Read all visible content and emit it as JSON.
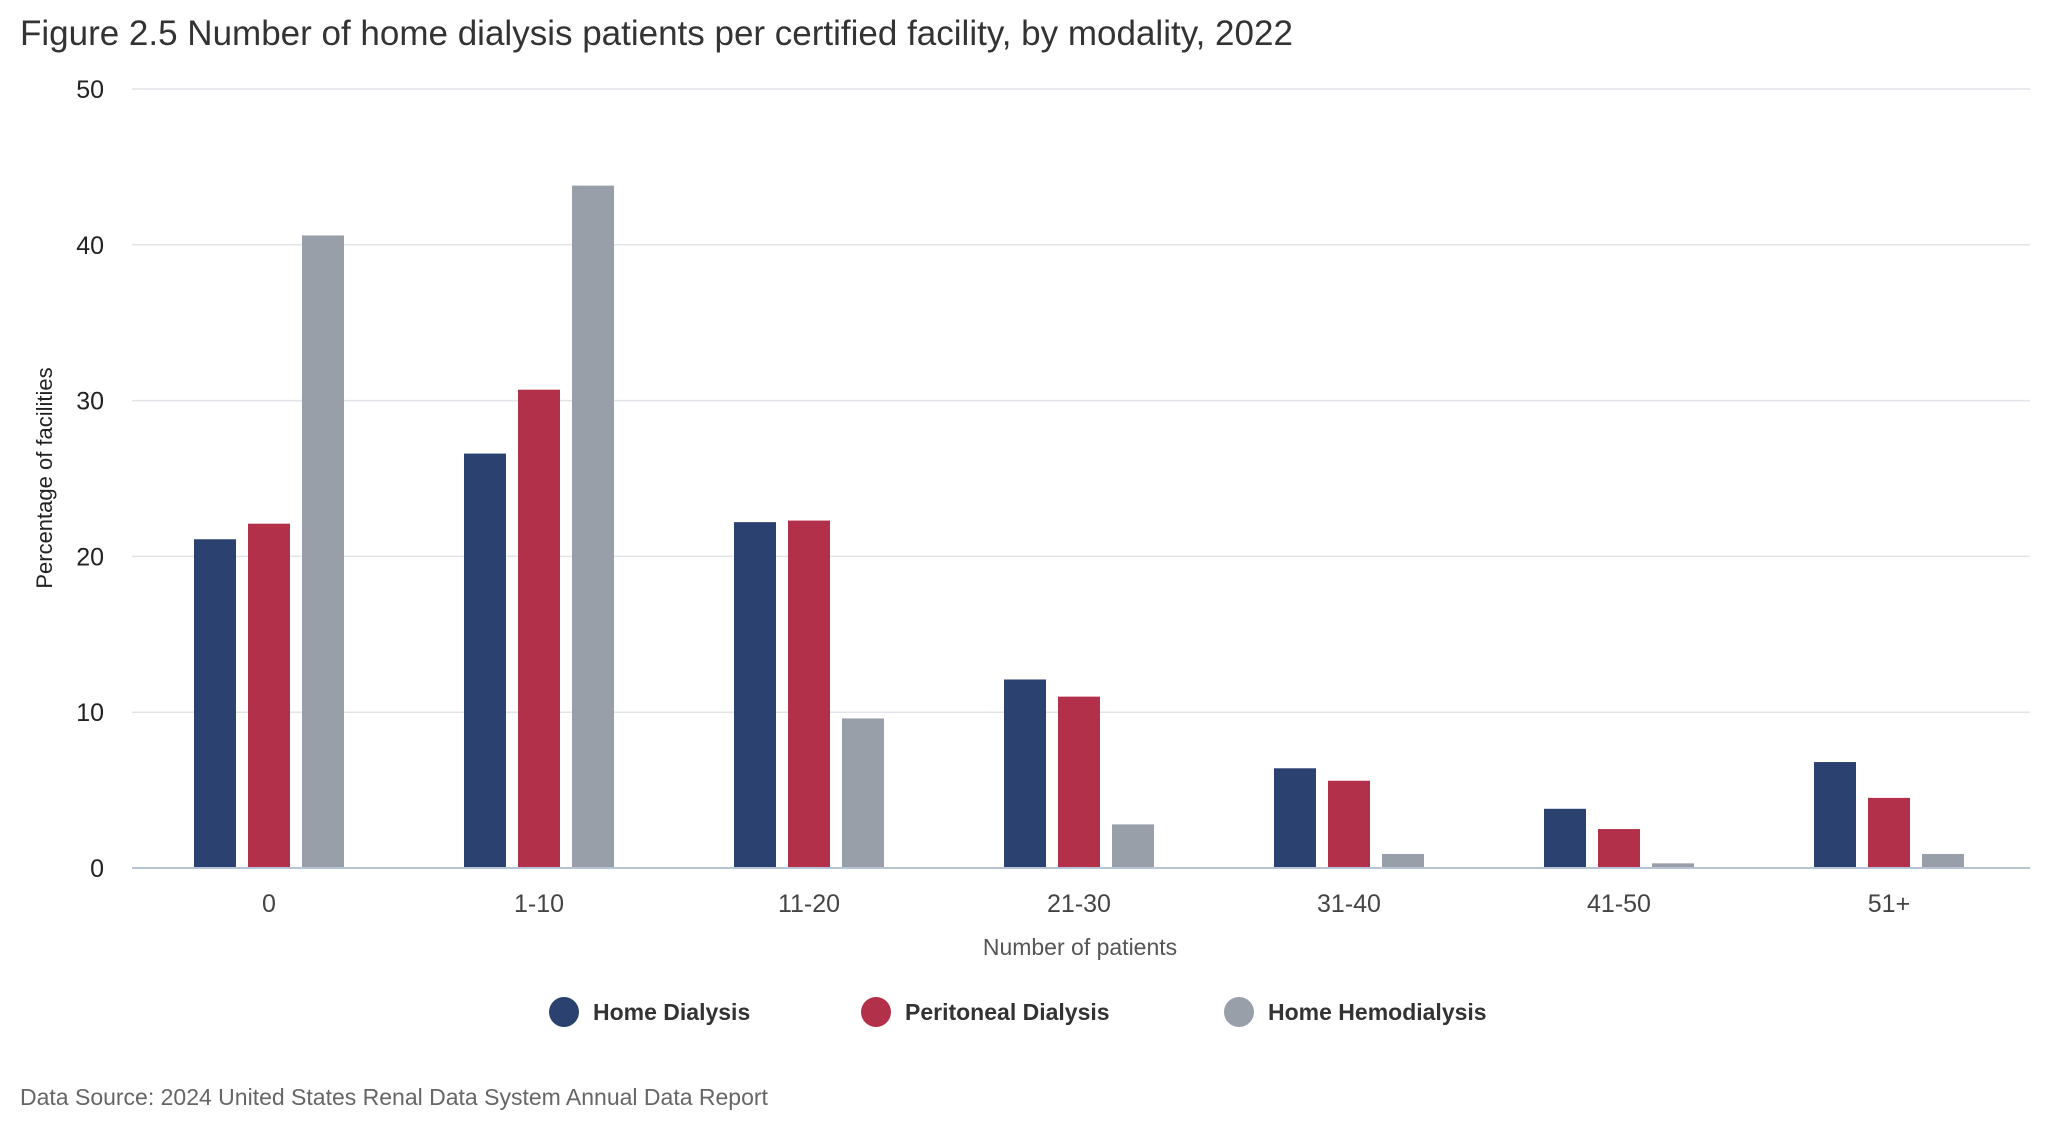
{
  "title": "Figure 2.5 Number of home dialysis patients per certified facility, by modality, 2022",
  "source": "Data Source: 2024 United States Renal Data System Annual Data Report",
  "chart_data": {
    "type": "bar",
    "title": "Figure 2.5 Number of home dialysis patients per certified facility, by modality, 2022",
    "xlabel": "Number of patients",
    "ylabel": "Percentage of facilities",
    "ylim": [
      0,
      50
    ],
    "yticks": [
      0,
      10,
      20,
      30,
      40,
      50
    ],
    "grid": true,
    "legend_position": "bottom-center",
    "categories": [
      "0",
      "1-10",
      "11-20",
      "21-30",
      "31-40",
      "41-50",
      "51+"
    ],
    "series": [
      {
        "name": "Home Dialysis",
        "color": "#2b4170",
        "values": [
          21.1,
          26.6,
          22.2,
          12.1,
          6.4,
          3.8,
          6.8
        ]
      },
      {
        "name": "Peritoneal Dialysis",
        "color": "#b2304a",
        "values": [
          22.1,
          30.7,
          22.3,
          11.0,
          5.6,
          2.5,
          4.5
        ]
      },
      {
        "name": "Home Hemodialysis",
        "color": "#989fa8",
        "values": [
          40.6,
          43.8,
          9.6,
          2.8,
          0.9,
          0.3,
          0.9
        ]
      }
    ]
  }
}
